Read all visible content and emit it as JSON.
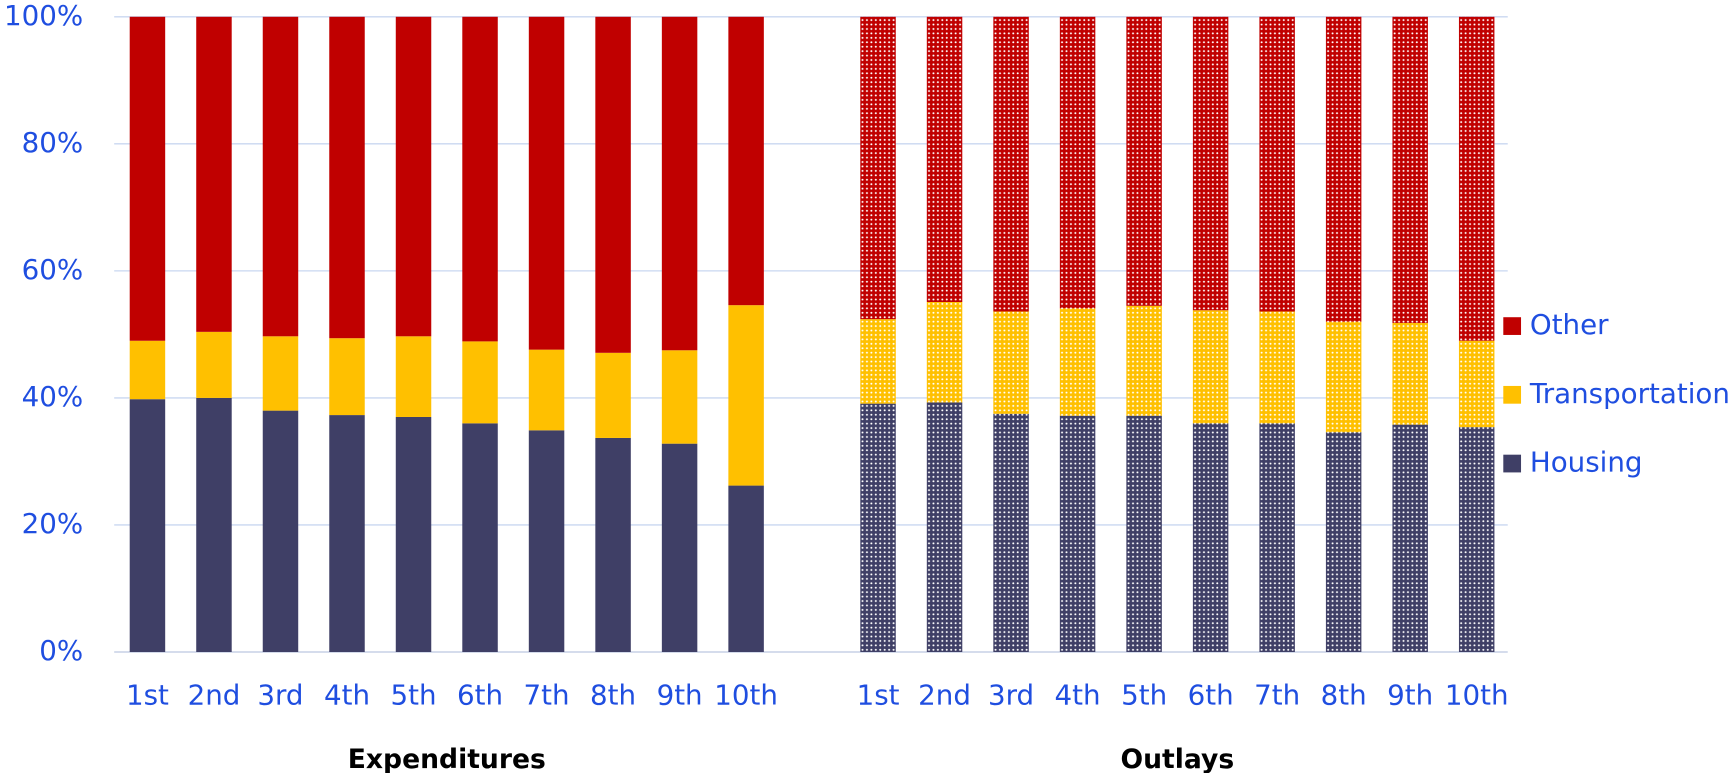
{
  "chart_data": {
    "type": "bar",
    "stacked": true,
    "categories": [
      "1st",
      "2nd",
      "3rd",
      "4th",
      "5th",
      "6th",
      "7th",
      "8th",
      "9th",
      "10th"
    ],
    "groups": [
      "Expenditures",
      "Outlays"
    ],
    "group_fill": [
      "solid",
      "dots"
    ],
    "series": [
      {
        "name": "Housing",
        "color": "#3f3f66",
        "values": [
          [
            39.8,
            40.0,
            38.0,
            37.3,
            37.0,
            36.0,
            34.9,
            33.7,
            32.8,
            26.2
          ],
          [
            39.1,
            39.3,
            37.5,
            37.2,
            37.2,
            36.0,
            36.0,
            34.6,
            35.8,
            35.4
          ]
        ]
      },
      {
        "name": "Transportation",
        "color": "#ffc000",
        "values": [
          [
            9.2,
            10.4,
            11.7,
            12.1,
            12.7,
            12.9,
            12.7,
            13.4,
            14.7,
            28.4
          ],
          [
            13.3,
            15.8,
            16.1,
            16.9,
            17.3,
            17.8,
            17.6,
            17.4,
            16.0,
            13.6
          ]
        ]
      },
      {
        "name": "Other",
        "color": "#c00000",
        "values": [
          [
            51.0,
            49.6,
            50.3,
            50.6,
            50.3,
            51.1,
            52.4,
            52.9,
            52.5,
            45.4
          ],
          [
            47.6,
            44.9,
            46.4,
            45.9,
            45.5,
            46.2,
            46.4,
            48.0,
            48.2,
            51.0
          ]
        ]
      }
    ],
    "ylim": [
      0,
      100
    ],
    "yticks": [
      {
        "value": 0,
        "label": "0%"
      },
      {
        "value": 20,
        "label": "20%"
      },
      {
        "value": 40,
        "label": "40%"
      },
      {
        "value": 60,
        "label": "60%"
      },
      {
        "value": 80,
        "label": "80%"
      },
      {
        "value": 100,
        "label": "100%"
      }
    ],
    "grid": true,
    "legend": "right"
  }
}
